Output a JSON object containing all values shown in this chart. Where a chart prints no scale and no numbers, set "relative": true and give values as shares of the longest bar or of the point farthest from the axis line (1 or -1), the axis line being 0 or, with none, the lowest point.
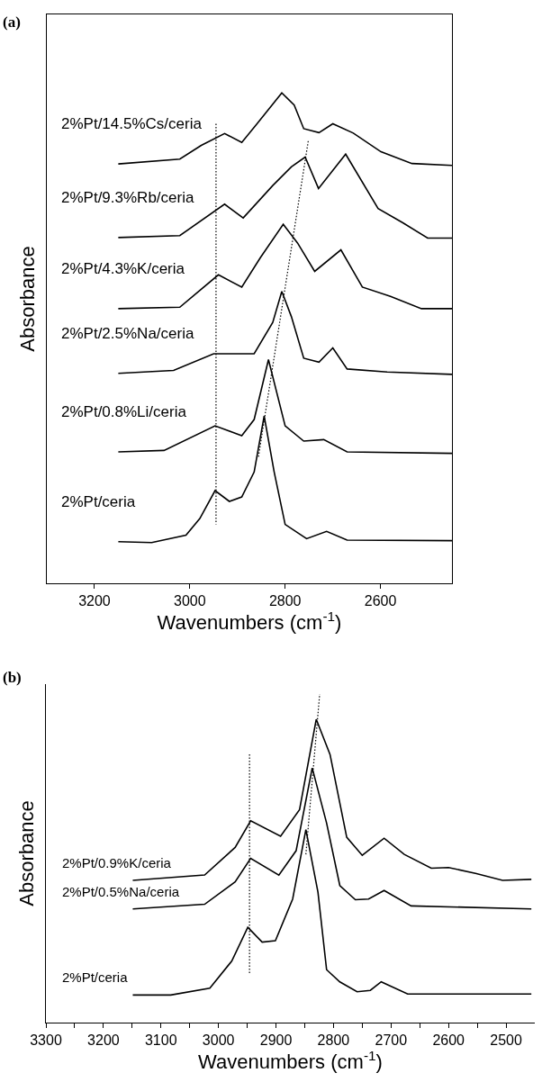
{
  "chart_data": [
    {
      "type": "line",
      "title": "(a)",
      "xlabel": "Wavenumbers (cm$^{-1}$)",
      "ylabel": "Absorbance",
      "relative": true,
      "xlim": [
        3300,
        2450
      ],
      "xticks": [
        3200,
        3000,
        2800,
        2600
      ],
      "tick_labels": "x",
      "grid": false,
      "legend": false,
      "marker": "none",
      "line_style": "solid",
      "series": [
        {
          "name": "2%Pt/14.5%Cs/ceria",
          "color": "#000000",
          "x": [
            3150,
            3021,
            2976,
            2927,
            2891,
            2859,
            2807,
            2781,
            2761,
            2729,
            2700,
            2657,
            2599,
            2534,
            2450
          ],
          "values": [
            0.855,
            0.865,
            0.893,
            0.917,
            0.899,
            0.937,
            1.0,
            0.975,
            0.927,
            0.919,
            0.937,
            0.918,
            0.88,
            0.856,
            0.852
          ]
        },
        {
          "name": "2%Pt/9.3%Rb/ceria",
          "color": "#000000",
          "x": [
            3150,
            3021,
            2927,
            2888,
            2826,
            2787,
            2758,
            2730,
            2673,
            2605,
            2553,
            2501,
            2450
          ],
          "values": [
            0.705,
            0.709,
            0.773,
            0.745,
            0.811,
            0.849,
            0.869,
            0.805,
            0.875,
            0.764,
            0.735,
            0.704,
            0.704
          ]
        },
        {
          "name": "2%Pt/4.3%K/ceria",
          "color": "#000000",
          "x": [
            3150,
            3021,
            2940,
            2891,
            2852,
            2804,
            2774,
            2738,
            2683,
            2638,
            2579,
            2514,
            2450
          ],
          "values": [
            0.56,
            0.563,
            0.629,
            0.604,
            0.664,
            0.732,
            0.694,
            0.636,
            0.68,
            0.604,
            0.585,
            0.56,
            0.56
          ]
        },
        {
          "name": "2%Pt/2.5%Na/ceria",
          "color": "#000000",
          "x": [
            3150,
            3034,
            2950,
            2865,
            2826,
            2807,
            2787,
            2761,
            2729,
            2700,
            2670,
            2586,
            2450
          ],
          "values": [
            0.428,
            0.434,
            0.468,
            0.468,
            0.532,
            0.595,
            0.544,
            0.459,
            0.451,
            0.48,
            0.437,
            0.431,
            0.426
          ]
        },
        {
          "name": "2%Pt/0.8%Li/ceria",
          "color": "#000000",
          "x": [
            3150,
            3054,
            2947,
            2891,
            2865,
            2835,
            2800,
            2761,
            2719,
            2670,
            2450
          ],
          "values": [
            0.268,
            0.271,
            0.321,
            0.301,
            0.334,
            0.456,
            0.321,
            0.29,
            0.293,
            0.268,
            0.265
          ]
        },
        {
          "name": "2%Pt/ceria",
          "color": "#000000",
          "x": [
            3150,
            3080,
            3008,
            2979,
            2947,
            2917,
            2891,
            2865,
            2844,
            2823,
            2800,
            2755,
            2713,
            2670,
            2450
          ],
          "values": [
            0.085,
            0.083,
            0.098,
            0.132,
            0.189,
            0.167,
            0.176,
            0.227,
            0.341,
            0.227,
            0.12,
            0.091,
            0.106,
            0.088,
            0.087
          ]
        },
        {
          "color": "#000000",
          "line_style": "dotted",
          "x": [
            2945,
            2945
          ],
          "values": [
            0.937,
            0.12
          ]
        },
        {
          "color": "#000000",
          "line_style": "dotted",
          "x": [
            2856,
            2751
          ],
          "values": [
            0.258,
            0.905
          ]
        }
      ]
    },
    {
      "type": "line",
      "title": "(b)",
      "xlabel": "Wavenumbers (cm$^{-1}$)",
      "ylabel": "Absorbance",
      "relative": true,
      "xlim": [
        3300,
        2450
      ],
      "xticks": [
        3300,
        {
          "value": 3250,
          "label": null
        },
        3200,
        {
          "value": 3150,
          "label": null
        },
        3100,
        {
          "value": 3050,
          "label": null
        },
        3000,
        {
          "value": 2950,
          "label": null
        },
        2900,
        {
          "value": 2850,
          "label": null
        },
        2800,
        {
          "value": 2750,
          "label": null
        },
        2700,
        {
          "value": 2650,
          "label": null
        },
        2600,
        {
          "value": 2550,
          "label": null
        },
        2500
      ],
      "tick_labels": "x",
      "grid": false,
      "legend": false,
      "marker": "none",
      "line_style": "solid",
      "series": [
        {
          "name": "2%Pt/0.9%K/ceria",
          "color": "#000000",
          "x": [
            3149,
            3024,
            2971,
            2944,
            2892,
            2859,
            2830,
            2806,
            2777,
            2750,
            2712,
            2677,
            2630,
            2600,
            2553,
            2506,
            2456
          ],
          "values": [
            0.433,
            0.449,
            0.533,
            0.614,
            0.567,
            0.648,
            0.923,
            0.816,
            0.564,
            0.509,
            0.561,
            0.512,
            0.47,
            0.472,
            0.454,
            0.433,
            0.436
          ]
        },
        {
          "name": "2%Pt/0.5%Na/ceria",
          "color": "#000000",
          "x": [
            3149,
            3024,
            2971,
            2944,
            2895,
            2865,
            2837,
            2812,
            2789,
            2762,
            2739,
            2712,
            2665,
            2456
          ],
          "values": [
            0.346,
            0.36,
            0.428,
            0.5,
            0.449,
            0.523,
            0.775,
            0.607,
            0.417,
            0.374,
            0.376,
            0.402,
            0.355,
            0.346
          ]
        },
        {
          "name": "2%Pt/ceria",
          "color": "#000000",
          "x": [
            3149,
            3083,
            3015,
            2977,
            2949,
            2924,
            2901,
            2871,
            2848,
            2827,
            2812,
            2789,
            2759,
            2736,
            2717,
            2671,
            2456
          ],
          "values": [
            0.084,
            0.084,
            0.105,
            0.187,
            0.29,
            0.245,
            0.249,
            0.376,
            0.587,
            0.397,
            0.161,
            0.124,
            0.094,
            0.098,
            0.124,
            0.087,
            0.087
          ]
        },
        {
          "color": "#000000",
          "line_style": "dotted",
          "x": [
            2946,
            2946
          ],
          "values": [
            0.816,
            0.147
          ]
        },
        {
          "color": "#000000",
          "line_style": "dotted",
          "x": [
            2848,
            2824
          ],
          "values": [
            0.512,
            1.0
          ]
        }
      ]
    }
  ]
}
